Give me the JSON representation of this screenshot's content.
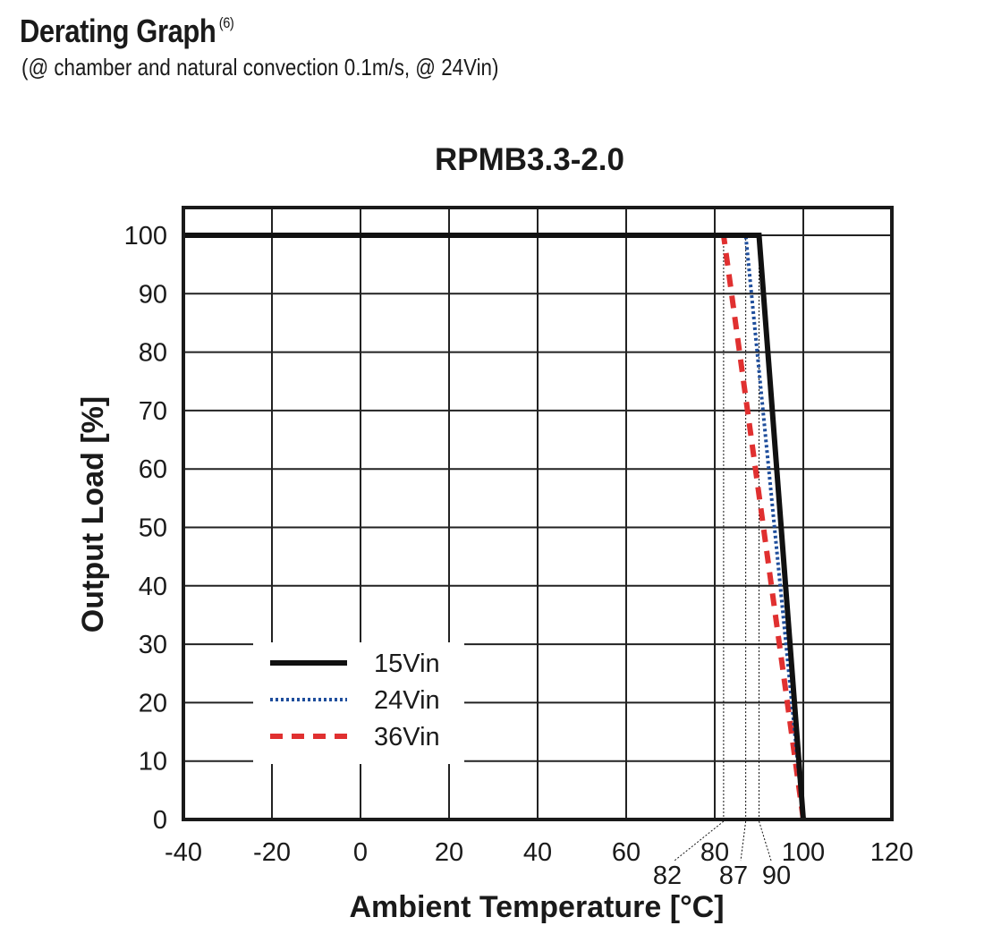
{
  "header": {
    "title": "Derating Graph",
    "title_note": "(6)",
    "subtitle": "(@ chamber and natural convection 0.1m/s, @ 24Vin)"
  },
  "chart_data": {
    "type": "line",
    "title": "RPMB3.3-2.0",
    "xlabel": "Ambient Temperature [°C]",
    "ylabel": "Output Load [%]",
    "xlim": [
      -40,
      120
    ],
    "ylim": [
      0,
      105
    ],
    "x_ticks": [
      -40,
      -20,
      0,
      20,
      40,
      60,
      80,
      100,
      120
    ],
    "y_ticks": [
      0,
      10,
      20,
      30,
      40,
      50,
      60,
      70,
      80,
      90,
      100
    ],
    "grid": true,
    "legend_position": "lower-left",
    "series": [
      {
        "name": "15Vin",
        "color": "#111111",
        "style": "solid",
        "points": [
          [
            -40,
            100
          ],
          [
            90,
            100
          ],
          [
            100,
            0
          ]
        ]
      },
      {
        "name": "24Vin",
        "color": "#1f4e9c",
        "style": "dotted",
        "points": [
          [
            -40,
            100
          ],
          [
            87,
            100
          ],
          [
            100,
            0
          ]
        ]
      },
      {
        "name": "36Vin",
        "color": "#e03030",
        "style": "dashed",
        "points": [
          [
            -40,
            100
          ],
          [
            82,
            100
          ],
          [
            100,
            0
          ]
        ]
      }
    ],
    "annotations": [
      {
        "label": "82",
        "x": 82
      },
      {
        "label": "87",
        "x": 87
      },
      {
        "label": "90",
        "x": 90
      }
    ]
  }
}
